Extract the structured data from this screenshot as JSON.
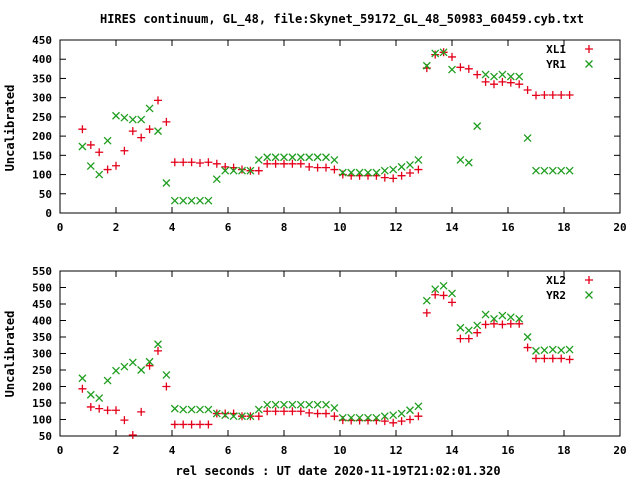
{
  "title": "HIRES continuum, GL_48, file:Skynet_59172_GL_48_50983_60459.cyb.txt",
  "xlabel": "rel seconds : UT date 2020-11-19T21:02:01.320",
  "colors": {
    "series_a": "#e4001a",
    "series_b": "#1f9e1f",
    "axis": "#000000"
  },
  "chart_data": [
    {
      "type": "scatter",
      "ylabel": "Uncalibrated",
      "xlim": [
        0,
        20
      ],
      "ylim": [
        0,
        450
      ],
      "xticks": [
        0,
        2,
        4,
        6,
        8,
        10,
        12,
        14,
        16,
        18,
        20
      ],
      "yticks": [
        0,
        50,
        100,
        150,
        200,
        250,
        300,
        350,
        400,
        450
      ],
      "legend_position": "top-right",
      "series": [
        {
          "name": "XL1",
          "marker": "plus",
          "x": [
            0.8,
            1.1,
            1.4,
            1.7,
            2.0,
            2.3,
            2.6,
            2.9,
            3.2,
            3.5,
            3.8,
            4.1,
            4.4,
            4.7,
            5.0,
            5.3,
            5.6,
            5.9,
            6.2,
            6.5,
            6.8,
            7.1,
            7.4,
            7.7,
            8.0,
            8.3,
            8.6,
            8.9,
            9.2,
            9.5,
            9.8,
            10.1,
            10.4,
            10.7,
            11.0,
            11.3,
            11.6,
            11.9,
            12.2,
            12.5,
            12.8,
            13.1,
            13.4,
            13.7,
            14.0,
            14.3,
            14.6,
            14.9,
            15.2,
            15.5,
            15.8,
            16.1,
            16.4,
            16.7,
            17.0,
            17.3,
            17.6,
            17.9,
            18.2
          ],
          "y": [
            218,
            177,
            158,
            113,
            123,
            162,
            213,
            196,
            218,
            293,
            237,
            132,
            132,
            132,
            130,
            132,
            128,
            120,
            118,
            113,
            110,
            110,
            128,
            128,
            128,
            128,
            128,
            120,
            118,
            118,
            113,
            100,
            97,
            97,
            97,
            97,
            92,
            90,
            97,
            104,
            113,
            377,
            412,
            418,
            406,
            379,
            375,
            360,
            341,
            335,
            341,
            339,
            335,
            320,
            306,
            307,
            307,
            307,
            307
          ]
        },
        {
          "name": "YR1",
          "marker": "cross",
          "x": [
            0.8,
            1.1,
            1.4,
            1.7,
            2.0,
            2.3,
            2.6,
            2.9,
            3.2,
            3.5,
            3.8,
            4.1,
            4.4,
            4.7,
            5.0,
            5.3,
            5.6,
            5.9,
            6.2,
            6.5,
            6.8,
            7.1,
            7.4,
            7.7,
            8.0,
            8.3,
            8.6,
            8.9,
            9.2,
            9.5,
            9.8,
            10.1,
            10.4,
            10.7,
            11.0,
            11.3,
            11.6,
            11.9,
            12.2,
            12.5,
            12.8,
            13.1,
            13.4,
            13.7,
            14.0,
            14.3,
            14.6,
            14.9,
            15.2,
            15.5,
            15.8,
            16.1,
            16.4,
            16.7,
            17.0,
            17.3,
            17.6,
            17.9,
            18.2
          ],
          "y": [
            173,
            122,
            100,
            188,
            253,
            248,
            243,
            243,
            272,
            213,
            78,
            32,
            32,
            32,
            32,
            32,
            88,
            110,
            110,
            110,
            110,
            138,
            145,
            145,
            145,
            145,
            145,
            145,
            145,
            145,
            138,
            105,
            105,
            105,
            105,
            105,
            110,
            113,
            120,
            125,
            138,
            383,
            415,
            418,
            373,
            138,
            131,
            226,
            360,
            355,
            360,
            355,
            355,
            195,
            110,
            110,
            110,
            110,
            110
          ]
        }
      ]
    },
    {
      "type": "scatter",
      "ylabel": "Uncalibrated",
      "xlim": [
        0,
        20
      ],
      "ylim": [
        50,
        550
      ],
      "xticks": [
        0,
        2,
        4,
        6,
        8,
        10,
        12,
        14,
        16,
        18,
        20
      ],
      "yticks": [
        50,
        100,
        150,
        200,
        250,
        300,
        350,
        400,
        450,
        500,
        550
      ],
      "legend_position": "top-right",
      "series": [
        {
          "name": "XL2",
          "marker": "plus",
          "x": [
            0.8,
            1.1,
            1.4,
            1.7,
            2.0,
            2.3,
            2.6,
            2.9,
            3.2,
            3.5,
            3.8,
            4.1,
            4.4,
            4.7,
            5.0,
            5.3,
            5.6,
            5.9,
            6.2,
            6.5,
            6.8,
            7.1,
            7.4,
            7.7,
            8.0,
            8.3,
            8.6,
            8.9,
            9.2,
            9.5,
            9.8,
            10.1,
            10.4,
            10.7,
            11.0,
            11.3,
            11.6,
            11.9,
            12.2,
            12.5,
            12.8,
            13.1,
            13.4,
            13.7,
            14.0,
            14.3,
            14.6,
            14.9,
            15.2,
            15.5,
            15.8,
            16.1,
            16.4,
            16.7,
            17.0,
            17.3,
            17.6,
            17.9,
            18.2
          ],
          "y": [
            193,
            138,
            133,
            128,
            128,
            98,
            53,
            123,
            263,
            308,
            200,
            85,
            85,
            85,
            85,
            85,
            118,
            118,
            118,
            110,
            110,
            110,
            125,
            125,
            125,
            125,
            125,
            120,
            118,
            118,
            110,
            98,
            97,
            97,
            97,
            97,
            95,
            90,
            95,
            100,
            110,
            423,
            478,
            476,
            455,
            345,
            345,
            363,
            388,
            390,
            388,
            390,
            390,
            318,
            285,
            285,
            285,
            285,
            282
          ]
        },
        {
          "name": "YR2",
          "marker": "cross",
          "x": [
            0.8,
            1.1,
            1.4,
            1.7,
            2.0,
            2.3,
            2.6,
            2.9,
            3.2,
            3.5,
            3.8,
            4.1,
            4.4,
            4.7,
            5.0,
            5.3,
            5.6,
            5.9,
            6.2,
            6.5,
            6.8,
            7.1,
            7.4,
            7.7,
            8.0,
            8.3,
            8.6,
            8.9,
            9.2,
            9.5,
            9.8,
            10.1,
            10.4,
            10.7,
            11.0,
            11.3,
            11.6,
            11.9,
            12.2,
            12.5,
            12.8,
            13.1,
            13.4,
            13.7,
            14.0,
            14.3,
            14.6,
            14.9,
            15.2,
            15.5,
            15.8,
            16.1,
            16.4,
            16.7,
            17.0,
            17.3,
            17.6,
            17.9,
            18.2
          ],
          "y": [
            225,
            175,
            165,
            218,
            248,
            260,
            273,
            250,
            275,
            328,
            235,
            133,
            130,
            130,
            130,
            130,
            118,
            113,
            110,
            110,
            110,
            130,
            145,
            145,
            145,
            145,
            145,
            145,
            145,
            145,
            135,
            105,
            105,
            105,
            105,
            105,
            110,
            113,
            118,
            128,
            140,
            460,
            495,
            505,
            482,
            378,
            370,
            385,
            418,
            405,
            415,
            410,
            405,
            350,
            308,
            310,
            312,
            310,
            312
          ]
        }
      ]
    }
  ]
}
